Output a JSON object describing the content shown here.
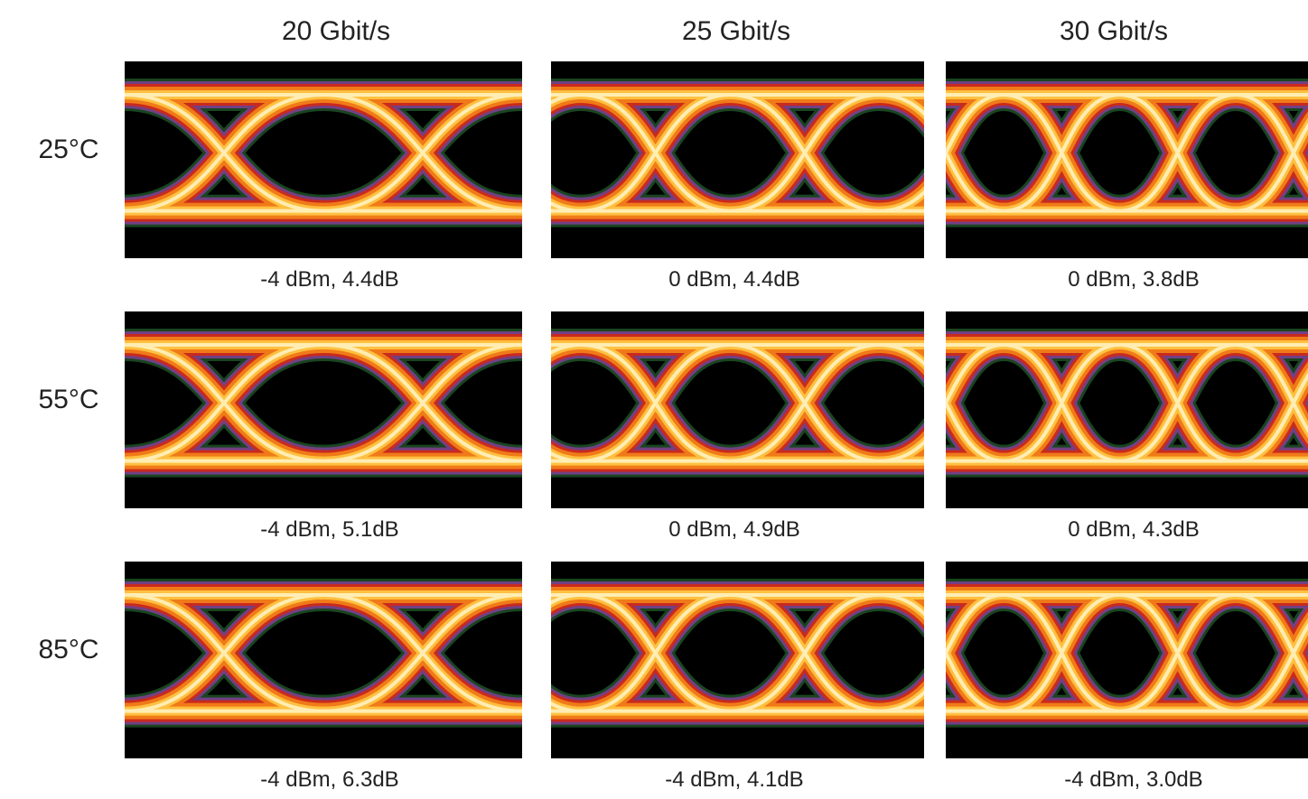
{
  "columns": [
    "20 Gbit/s",
    "25 Gbit/s",
    "30 Gbit/s"
  ],
  "rows": [
    "25°C",
    "55°C",
    "85°C"
  ],
  "captions": [
    [
      "-4 dBm, 4.4dB",
      "0 dBm, 4.4dB",
      "0 dBm, 3.8dB"
    ],
    [
      "-4 dBm, 5.1dB",
      "0 dBm, 4.9dB",
      "0 dBm, 4.3dB"
    ],
    [
      "-4 dBm, 6.3dB",
      "-4 dBm, 4.1dB",
      "-4 dBm, 3.0dB"
    ]
  ]
}
